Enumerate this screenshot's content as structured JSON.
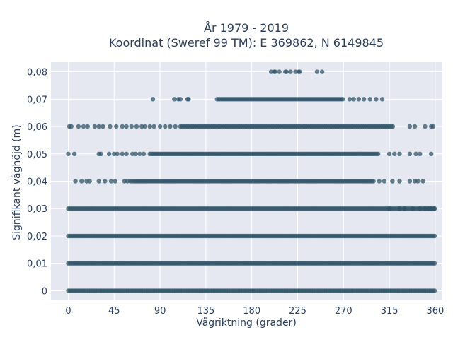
{
  "chart_data": {
    "type": "scatter",
    "title_lines": [
      "År 1979 - 2019",
      "Koordinat (Sweref 99 TM): E 369862, N 6149845"
    ],
    "xlabel": "Vågriktning (grader)",
    "ylabel": "Signifikant våghöjd (m)",
    "xlim": [
      -17,
      367
    ],
    "ylim": [
      -0.0035,
      0.0835
    ],
    "x_ticks": [
      {
        "value": 0,
        "label": "0"
      },
      {
        "value": 45,
        "label": "45"
      },
      {
        "value": 90,
        "label": "90"
      },
      {
        "value": 135,
        "label": "135"
      },
      {
        "value": 180,
        "label": "180"
      },
      {
        "value": 225,
        "label": "225"
      },
      {
        "value": 270,
        "label": "270"
      },
      {
        "value": 315,
        "label": "315"
      },
      {
        "value": 360,
        "label": "360"
      }
    ],
    "y_ticks": [
      {
        "value": 0,
        "label": "0"
      },
      {
        "value": 0.01,
        "label": "0,01"
      },
      {
        "value": 0.02,
        "label": "0,02"
      },
      {
        "value": 0.03,
        "label": "0,03"
      },
      {
        "value": 0.04,
        "label": "0,04"
      },
      {
        "value": 0.05,
        "label": "0,05"
      },
      {
        "value": 0.06,
        "label": "0,06"
      },
      {
        "value": 0.07,
        "label": "0,07"
      },
      {
        "value": 0.08,
        "label": "0,08"
      }
    ],
    "grid": true,
    "marker_color": "#2f5468",
    "background_color": "#e5e8f0",
    "bands": [
      {
        "y": 0.0,
        "dense": [
          0,
          360
        ],
        "scatter": []
      },
      {
        "y": 0.01,
        "dense": [
          0,
          360
        ],
        "scatter": []
      },
      {
        "y": 0.02,
        "dense": [
          0,
          360
        ],
        "scatter": []
      },
      {
        "y": 0.03,
        "dense": [
          0,
          360
        ],
        "scatter": [
          315,
          325,
          330,
          338,
          345,
          350,
          353,
          356,
          359
        ]
      },
      {
        "y": 0.04,
        "dense": [
          65,
          300
        ],
        "scatter": [
          7,
          13,
          18,
          21,
          30,
          36,
          42,
          46,
          55,
          58,
          61,
          63,
          305,
          310,
          318,
          325,
          335,
          340,
          343,
          348
        ]
      },
      {
        "y": 0.05,
        "dense": [
          80,
          305
        ],
        "scatter": [
          0,
          6,
          30,
          32,
          40,
          45,
          48,
          53,
          57,
          63,
          66,
          70,
          74,
          315,
          320,
          325,
          335,
          341,
          345,
          356
        ]
      },
      {
        "y": 0.06,
        "dense": [
          110,
          320
        ],
        "scatter": [
          1,
          3,
          10,
          15,
          19,
          26,
          30,
          34,
          41,
          47,
          53,
          57,
          62,
          67,
          72,
          75,
          80,
          84,
          90,
          95,
          100,
          105,
          335,
          340,
          350,
          356,
          358
        ]
      },
      {
        "y": 0.07,
        "dense": [
          146,
          270
        ],
        "scatter": [
          83,
          104,
          108,
          110,
          117,
          118,
          276,
          280,
          285,
          290,
          296,
          302,
          308
        ]
      },
      {
        "y": 0.08,
        "dense": [],
        "scatter": [
          199,
          202,
          203,
          207,
          213,
          214,
          218,
          223,
          226,
          227,
          244,
          249
        ]
      }
    ]
  }
}
